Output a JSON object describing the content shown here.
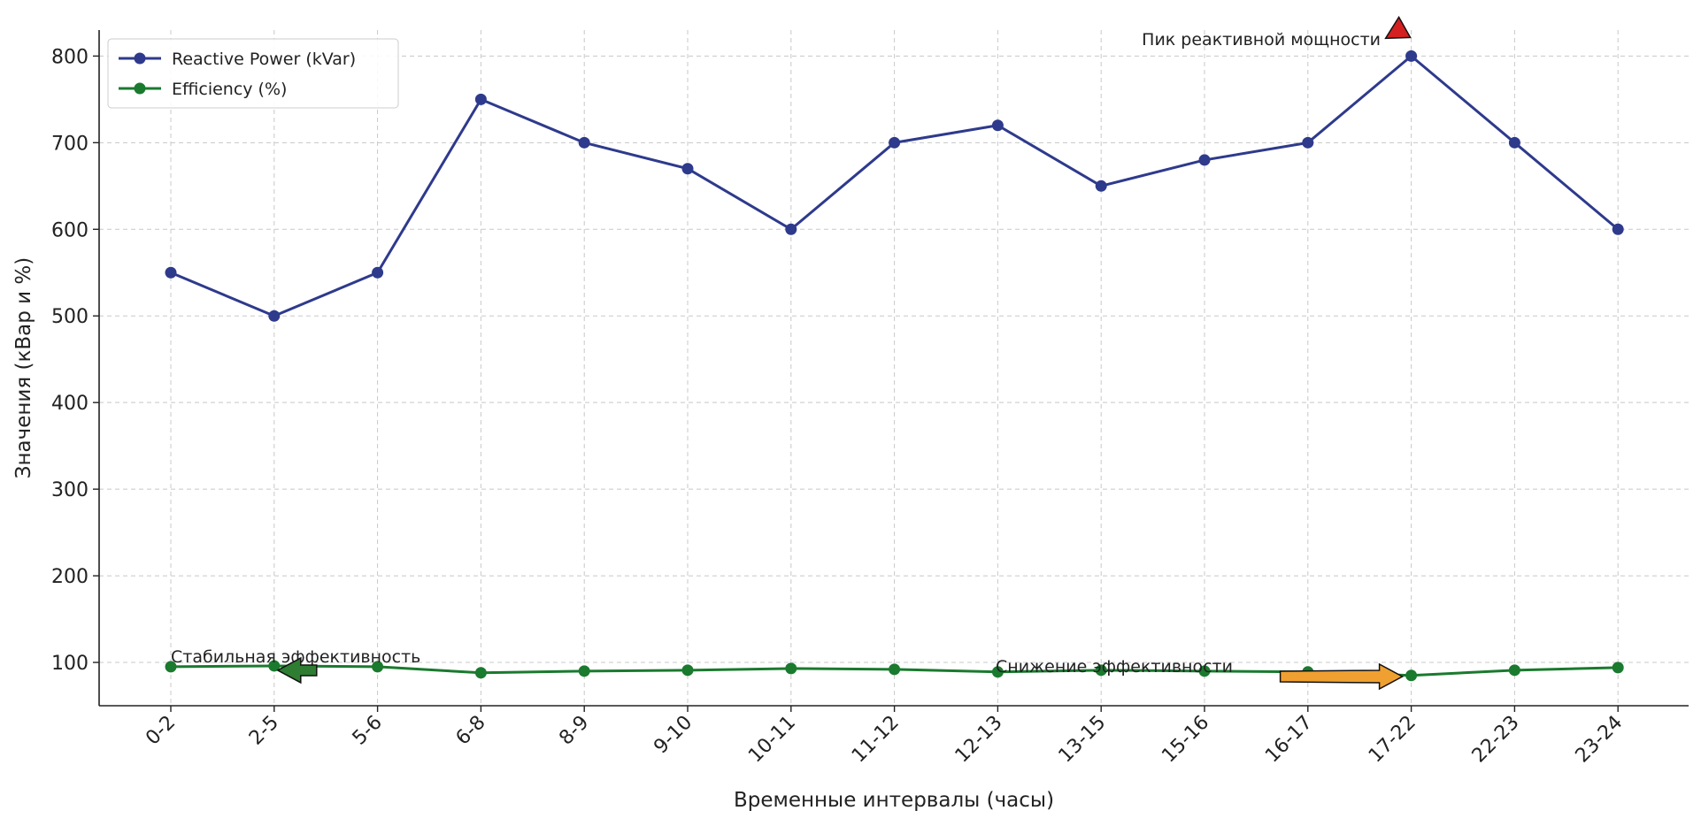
{
  "chart_data": {
    "type": "line",
    "xlabel": "Временные интервалы (часы)",
    "ylabel": "Значения (кВар и %)",
    "categories": [
      "0-2",
      "2-5",
      "5-6",
      "6-8",
      "8-9",
      "9-10",
      "10-11",
      "11-12",
      "12-13",
      "13-15",
      "15-16",
      "16-17",
      "17-22",
      "22-23",
      "23-24"
    ],
    "ylim": [
      50,
      830
    ],
    "yticks": [
      100,
      200,
      300,
      400,
      500,
      600,
      700,
      800
    ],
    "grid": true,
    "legend_position": "top-left",
    "series": [
      {
        "name": "Reactive Power (kVar)",
        "color": "#2e3a8c",
        "values": [
          550,
          500,
          550,
          750,
          700,
          670,
          600,
          700,
          720,
          650,
          680,
          700,
          800,
          700,
          600
        ]
      },
      {
        "name": "Efficiency (%)",
        "color": "#1a7a2e",
        "values": [
          95,
          96,
          95,
          88,
          90,
          91,
          93,
          92,
          89,
          91,
          90,
          89,
          85,
          91,
          94
        ]
      }
    ],
    "annotations": [
      {
        "text": "Пик реактивной мощности",
        "arrow_color": "#d42020",
        "category": "17-22",
        "value": 800
      },
      {
        "text": "Стабильная эффективность",
        "arrow_color": "#2e7d32",
        "category": "2-5",
        "value": 96
      },
      {
        "text": "Снижение эффективности",
        "arrow_color": "#f0a030",
        "category": "17-22",
        "value": 85
      }
    ]
  }
}
